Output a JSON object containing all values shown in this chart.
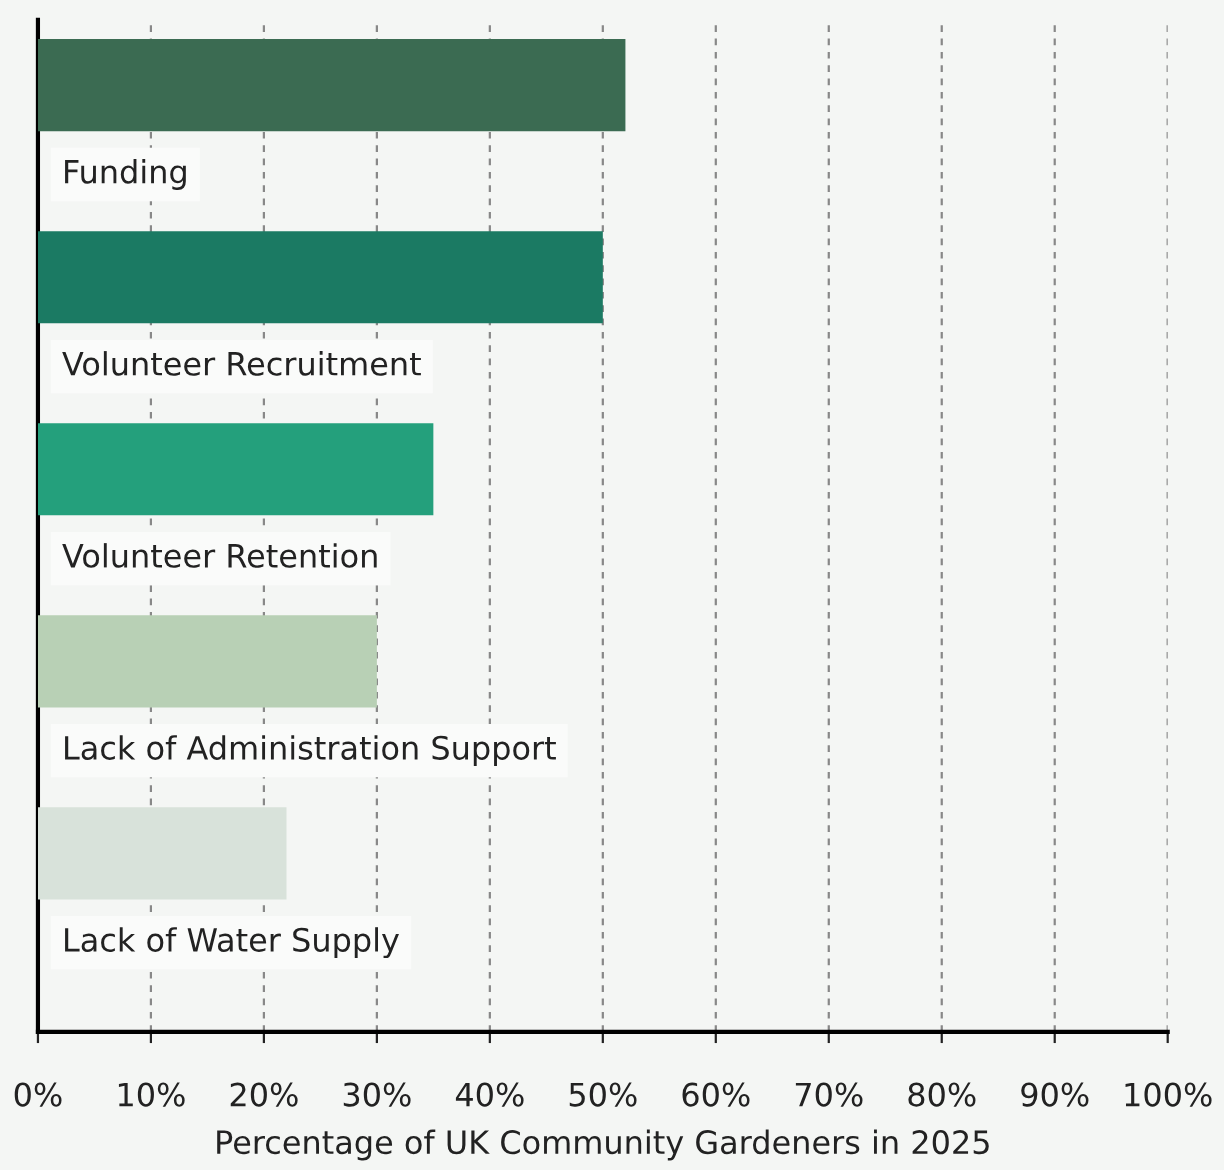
{
  "chart_data": {
    "type": "bar",
    "orientation": "horizontal",
    "xlabel": "Percentage of UK Community Gardeners in 2025",
    "categories": [
      "Funding",
      "Volunteer Recruitment",
      "Volunteer Retention",
      "Lack of Administration Support",
      "Lack of Water Supply"
    ],
    "values": [
      52,
      50,
      35,
      30,
      22
    ],
    "colors": [
      "#3b6b52",
      "#1b7a63",
      "#24a07c",
      "#b8d0b5",
      "#d8e2da"
    ],
    "xlim": [
      0,
      100
    ],
    "xticks": [
      {
        "value": 0,
        "label": "0%"
      },
      {
        "value": 10,
        "label": "10%"
      },
      {
        "value": 20,
        "label": "20%"
      },
      {
        "value": 30,
        "label": "30%"
      },
      {
        "value": 40,
        "label": "40%"
      },
      {
        "value": 50,
        "label": "50%"
      },
      {
        "value": 60,
        "label": "60%"
      },
      {
        "value": 70,
        "label": "70%"
      },
      {
        "value": 80,
        "label": "80%"
      },
      {
        "value": 90,
        "label": "90%"
      },
      {
        "value": 100,
        "label": "100%"
      }
    ],
    "grid": "x"
  }
}
